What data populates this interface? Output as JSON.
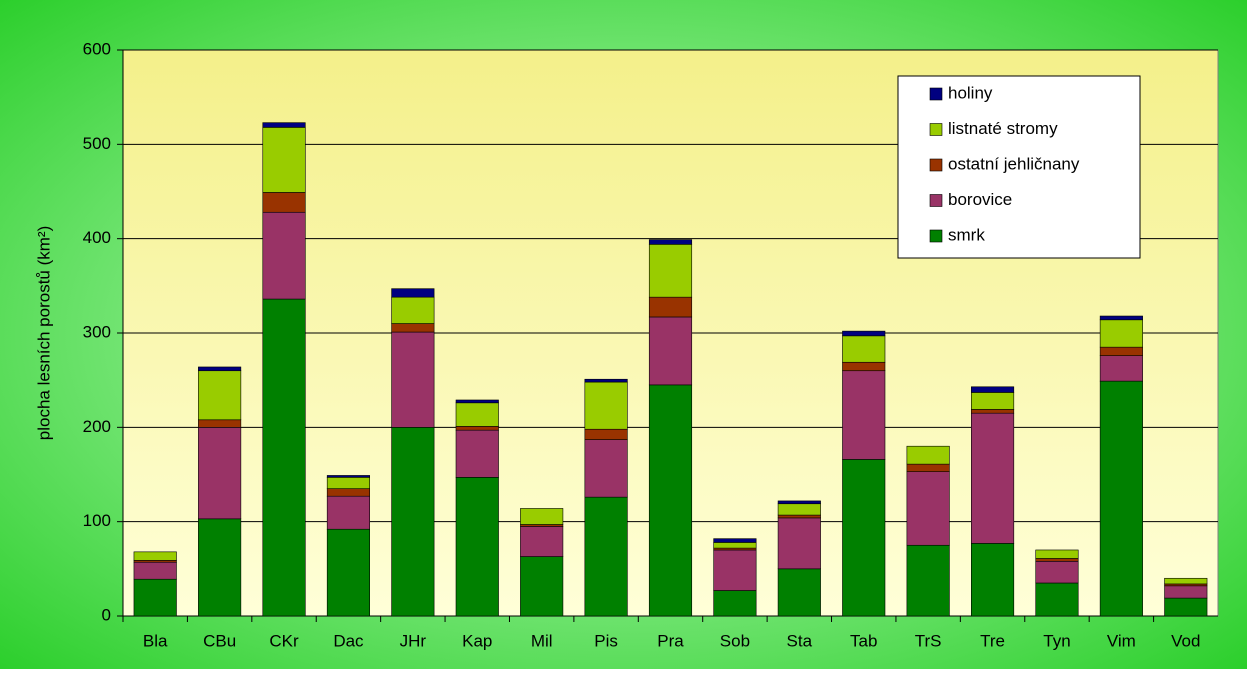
{
  "chart_data": {
    "type": "stacked_bar",
    "y_label": "plocha lesních porostů (km²)",
    "categories": [
      "Bla",
      "CBu",
      "CKr",
      "Dac",
      "JHr",
      "Kap",
      "Mil",
      "Pis",
      "Pra",
      "Sob",
      "Sta",
      "Tab",
      "TrS",
      "Tre",
      "Tyn",
      "Vim",
      "Vod"
    ],
    "series": [
      {
        "name": "smrk",
        "color": "#008000",
        "values": [
          39,
          103,
          336,
          92,
          200,
          147,
          63,
          126,
          245,
          27,
          50,
          166,
          75,
          77,
          35,
          249,
          19
        ]
      },
      {
        "name": "borovice",
        "color": "#993366",
        "values": [
          18,
          97,
          92,
          35,
          101,
          50,
          32,
          61,
          72,
          43,
          54,
          94,
          78,
          138,
          23,
          27,
          13
        ]
      },
      {
        "name": "ostatní jehličnany",
        "color": "#993300",
        "values": [
          2,
          8,
          21,
          8,
          9,
          4,
          2,
          11,
          21,
          2,
          3,
          9,
          8,
          4,
          3,
          9,
          2
        ]
      },
      {
        "name": "listnaté stromy",
        "color": "#99cc00",
        "values": [
          9,
          52,
          69,
          12,
          28,
          25,
          17,
          50,
          56,
          6,
          12,
          28,
          19,
          18,
          9,
          29,
          6
        ]
      },
      {
        "name": "holiny",
        "color": "#000080",
        "values": [
          0,
          4,
          5,
          2,
          9,
          3,
          0,
          3,
          5,
          4,
          3,
          5,
          0,
          6,
          0,
          4,
          0
        ]
      }
    ],
    "ylim": [
      0,
      600
    ],
    "yticks": [
      0,
      100,
      200,
      300,
      400,
      500,
      600
    ],
    "grid": true,
    "legend": "upper right"
  }
}
